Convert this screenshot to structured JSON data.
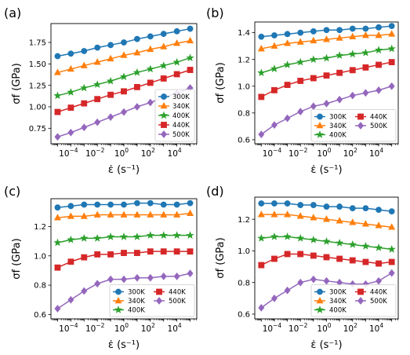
{
  "chart_data": [
    {
      "panel_label": "(a)",
      "type": "line",
      "xscale": "log",
      "x_exponents": [
        -5,
        -4,
        -3,
        -2,
        -1,
        0,
        1,
        2,
        3,
        4,
        5
      ],
      "xlim_exponents": [
        -5.5,
        5.5
      ],
      "xticks": [
        {
          "exp": -4,
          "label": "10",
          "sup": "−4"
        },
        {
          "exp": -2,
          "label": "10",
          "sup": "−2"
        },
        {
          "exp": 0,
          "label": "10",
          "sup": "0"
        },
        {
          "exp": 2,
          "label": "10",
          "sup": "2"
        },
        {
          "exp": 4,
          "label": "10",
          "sup": "4"
        }
      ],
      "xlabel": "ε̇ (s⁻¹)",
      "ylabel": "σf (GPa)",
      "ylim": [
        0.57,
        1.97
      ],
      "yticks": [
        0.75,
        1.0,
        1.25,
        1.5,
        1.75
      ],
      "ytick_labels": [
        "0.75",
        "1.00",
        "1.25",
        "1.50",
        "1.75"
      ],
      "legend": {
        "placement": "lower-right",
        "columns": 1
      },
      "series": [
        {
          "name": "300K",
          "color": "#1f77b4",
          "marker": "circle",
          "values": [
            1.59,
            1.62,
            1.65,
            1.69,
            1.72,
            1.75,
            1.79,
            1.82,
            1.85,
            1.88,
            1.91
          ]
        },
        {
          "name": "340K",
          "color": "#ff7f0e",
          "marker": "triangle",
          "values": [
            1.4,
            1.44,
            1.48,
            1.52,
            1.56,
            1.6,
            1.63,
            1.67,
            1.7,
            1.74,
            1.77
          ]
        },
        {
          "name": "400K",
          "color": "#2ca02c",
          "marker": "star",
          "values": [
            1.13,
            1.17,
            1.22,
            1.26,
            1.3,
            1.35,
            1.4,
            1.44,
            1.48,
            1.52,
            1.57
          ]
        },
        {
          "name": "440K",
          "color": "#d62728",
          "marker": "square",
          "values": [
            0.94,
            0.99,
            1.04,
            1.09,
            1.14,
            1.18,
            1.23,
            1.28,
            1.33,
            1.38,
            1.43
          ]
        },
        {
          "name": "500K",
          "color": "#9467bd",
          "marker": "diamond",
          "values": [
            0.65,
            0.7,
            0.76,
            0.82,
            0.88,
            0.94,
            1.0,
            1.05,
            1.11,
            1.16,
            1.22
          ]
        }
      ]
    },
    {
      "panel_label": "(b)",
      "type": "line",
      "xscale": "log",
      "x_exponents": [
        -5,
        -4,
        -3,
        -2,
        -1,
        0,
        1,
        2,
        3,
        4,
        5
      ],
      "xlim_exponents": [
        -5.5,
        5.5
      ],
      "xticks": [
        {
          "exp": -4,
          "label": "10",
          "sup": "−4"
        },
        {
          "exp": -2,
          "label": "10",
          "sup": "−2"
        },
        {
          "exp": 0,
          "label": "10",
          "sup": "0"
        },
        {
          "exp": 2,
          "label": "10",
          "sup": "2"
        },
        {
          "exp": 4,
          "label": "10",
          "sup": "4"
        }
      ],
      "xlabel": "ε̇ (s⁻¹)",
      "ylabel": "σf (GPa)",
      "ylim": [
        0.57,
        1.48
      ],
      "yticks": [
        0.6,
        0.8,
        1.0,
        1.2,
        1.4
      ],
      "ytick_labels": [
        "0.6",
        "0.8",
        "1.0",
        "1.2",
        "1.4"
      ],
      "legend": {
        "placement": "lower-right",
        "columns": 2
      },
      "series": [
        {
          "name": "300K",
          "color": "#1f77b4",
          "marker": "circle",
          "values": [
            1.37,
            1.38,
            1.39,
            1.4,
            1.41,
            1.42,
            1.42,
            1.43,
            1.43,
            1.44,
            1.45
          ]
        },
        {
          "name": "340K",
          "color": "#ff7f0e",
          "marker": "triangle",
          "values": [
            1.28,
            1.3,
            1.32,
            1.33,
            1.34,
            1.35,
            1.36,
            1.37,
            1.38,
            1.38,
            1.39
          ]
        },
        {
          "name": "400K",
          "color": "#2ca02c",
          "marker": "star",
          "values": [
            1.1,
            1.13,
            1.16,
            1.18,
            1.2,
            1.21,
            1.23,
            1.24,
            1.25,
            1.27,
            1.28
          ]
        },
        {
          "name": "440K",
          "color": "#d62728",
          "marker": "square",
          "values": [
            0.92,
            0.97,
            1.01,
            1.04,
            1.06,
            1.08,
            1.1,
            1.12,
            1.14,
            1.16,
            1.18
          ]
        },
        {
          "name": "500K",
          "color": "#9467bd",
          "marker": "diamond",
          "values": [
            0.64,
            0.71,
            0.76,
            0.81,
            0.85,
            0.87,
            0.9,
            0.93,
            0.95,
            0.97,
            1.0
          ]
        }
      ]
    },
    {
      "panel_label": "(c)",
      "type": "line",
      "xscale": "log",
      "x_exponents": [
        -5,
        -4,
        -3,
        -2,
        -1,
        0,
        1,
        2,
        3,
        4,
        5
      ],
      "xlim_exponents": [
        -5.5,
        5.5
      ],
      "xticks": [
        {
          "exp": -4,
          "label": "10",
          "sup": "−4"
        },
        {
          "exp": -2,
          "label": "10",
          "sup": "−2"
        },
        {
          "exp": 0,
          "label": "10",
          "sup": "0"
        },
        {
          "exp": 2,
          "label": "10",
          "sup": "2"
        },
        {
          "exp": 4,
          "label": "10",
          "sup": "4"
        }
      ],
      "xlabel": "ε̇ (s⁻¹)",
      "ylabel": "σf (GPa)",
      "ylim": [
        0.57,
        1.39
      ],
      "yticks": [
        0.6,
        0.8,
        1.0,
        1.2
      ],
      "ytick_labels": [
        "0.6",
        "0.8",
        "1.0",
        "1.2"
      ],
      "legend": {
        "placement": "lower-right",
        "columns": 2
      },
      "series": [
        {
          "name": "300K",
          "color": "#1f77b4",
          "marker": "circle",
          "values": [
            1.33,
            1.34,
            1.35,
            1.35,
            1.35,
            1.35,
            1.36,
            1.36,
            1.35,
            1.35,
            1.36
          ]
        },
        {
          "name": "340K",
          "color": "#ff7f0e",
          "marker": "triangle",
          "values": [
            1.26,
            1.27,
            1.27,
            1.28,
            1.28,
            1.28,
            1.28,
            1.28,
            1.28,
            1.28,
            1.29
          ]
        },
        {
          "name": "400K",
          "color": "#2ca02c",
          "marker": "star",
          "values": [
            1.09,
            1.11,
            1.12,
            1.12,
            1.13,
            1.13,
            1.13,
            1.14,
            1.14,
            1.14,
            1.14
          ]
        },
        {
          "name": "440K",
          "color": "#d62728",
          "marker": "square",
          "values": [
            0.92,
            0.96,
            0.99,
            1.01,
            1.01,
            1.02,
            1.02,
            1.03,
            1.03,
            1.03,
            1.03
          ]
        },
        {
          "name": "500K",
          "color": "#9467bd",
          "marker": "diamond",
          "values": [
            0.64,
            0.7,
            0.76,
            0.81,
            0.84,
            0.84,
            0.85,
            0.85,
            0.86,
            0.86,
            0.88
          ]
        }
      ]
    },
    {
      "panel_label": "(d)",
      "type": "line",
      "xscale": "log",
      "x_exponents": [
        -5,
        -4,
        -3,
        -2,
        -1,
        0,
        1,
        2,
        3,
        4,
        5
      ],
      "xlim_exponents": [
        -5.5,
        5.5
      ],
      "xticks": [
        {
          "exp": -4,
          "label": "10",
          "sup": "−4"
        },
        {
          "exp": -2,
          "label": "10",
          "sup": "−2"
        },
        {
          "exp": 0,
          "label": "10",
          "sup": "0"
        },
        {
          "exp": 2,
          "label": "10",
          "sup": "2"
        },
        {
          "exp": 4,
          "label": "10",
          "sup": "4"
        }
      ],
      "xlabel": "ε̇ (s⁻¹)",
      "ylabel": "σf (GPa)",
      "ylim": [
        0.57,
        1.34
      ],
      "yticks": [
        0.6,
        0.8,
        1.0,
        1.2
      ],
      "ytick_labels": [
        "0.6",
        "0.8",
        "1.0",
        "1.2"
      ],
      "legend": {
        "placement": "lower-right",
        "columns": 2
      },
      "series": [
        {
          "name": "300K",
          "color": "#1f77b4",
          "marker": "circle",
          "values": [
            1.3,
            1.3,
            1.3,
            1.29,
            1.29,
            1.28,
            1.28,
            1.27,
            1.27,
            1.26,
            1.25
          ]
        },
        {
          "name": "340K",
          "color": "#ff7f0e",
          "marker": "triangle",
          "values": [
            1.23,
            1.23,
            1.23,
            1.22,
            1.21,
            1.2,
            1.19,
            1.18,
            1.17,
            1.16,
            1.15
          ]
        },
        {
          "name": "400K",
          "color": "#2ca02c",
          "marker": "star",
          "values": [
            1.08,
            1.09,
            1.09,
            1.08,
            1.07,
            1.06,
            1.05,
            1.04,
            1.03,
            1.02,
            1.01
          ]
        },
        {
          "name": "440K",
          "color": "#d62728",
          "marker": "square",
          "values": [
            0.91,
            0.95,
            0.98,
            0.98,
            0.97,
            0.96,
            0.95,
            0.94,
            0.93,
            0.92,
            0.93
          ]
        },
        {
          "name": "500K",
          "color": "#9467bd",
          "marker": "diamond",
          "values": [
            0.64,
            0.7,
            0.75,
            0.8,
            0.82,
            0.81,
            0.8,
            0.79,
            0.79,
            0.81,
            0.86
          ]
        }
      ]
    }
  ]
}
